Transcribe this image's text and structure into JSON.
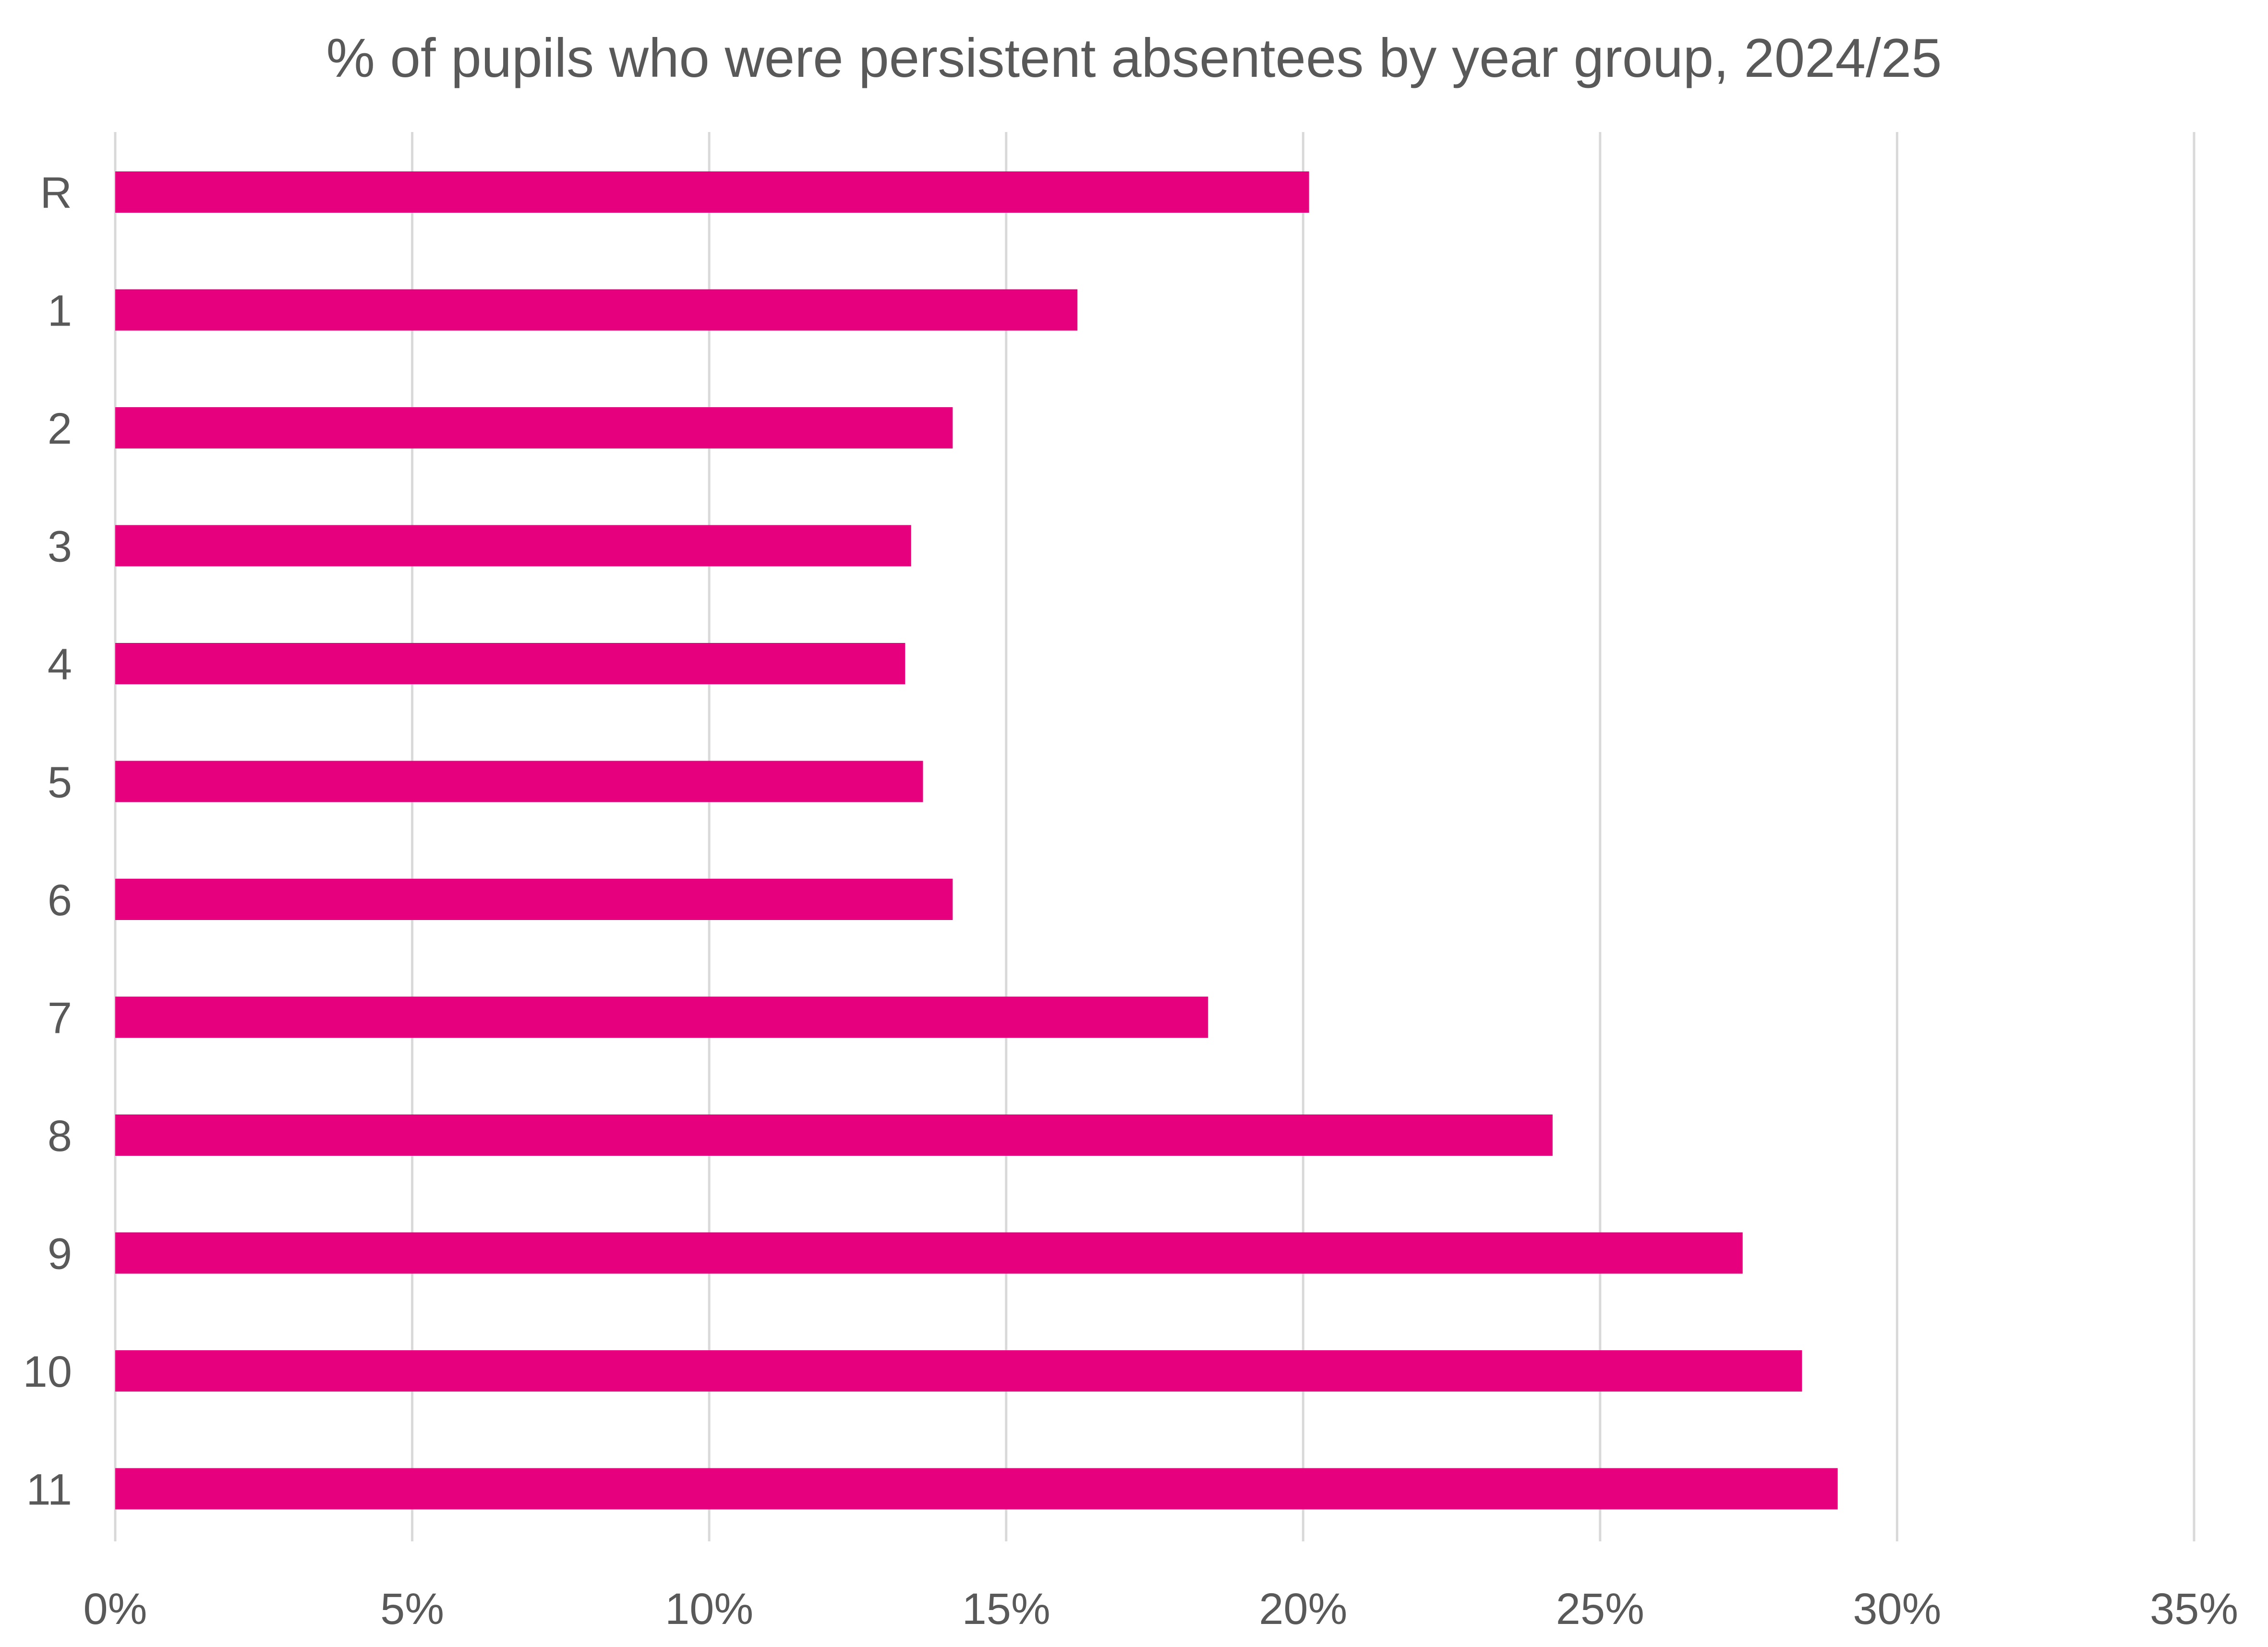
{
  "chart_data": {
    "type": "bar",
    "orientation": "horizontal",
    "title": "% of pupils who were persistent absentees by year group, 2024/25",
    "xlabel": "",
    "ylabel": "",
    "categories": [
      "R",
      "1",
      "2",
      "3",
      "4",
      "5",
      "6",
      "7",
      "8",
      "9",
      "10",
      "11"
    ],
    "values": [
      20.1,
      16.2,
      14.1,
      13.4,
      13.3,
      13.6,
      14.1,
      18.4,
      24.2,
      27.4,
      28.4,
      29.0
    ],
    "xlim": [
      0,
      35
    ],
    "x_ticks": [
      "0%",
      "5%",
      "10%",
      "15%",
      "20%",
      "25%",
      "30%",
      "35%"
    ],
    "bar_color": "#E6007E",
    "grid": true,
    "legend": "none"
  }
}
